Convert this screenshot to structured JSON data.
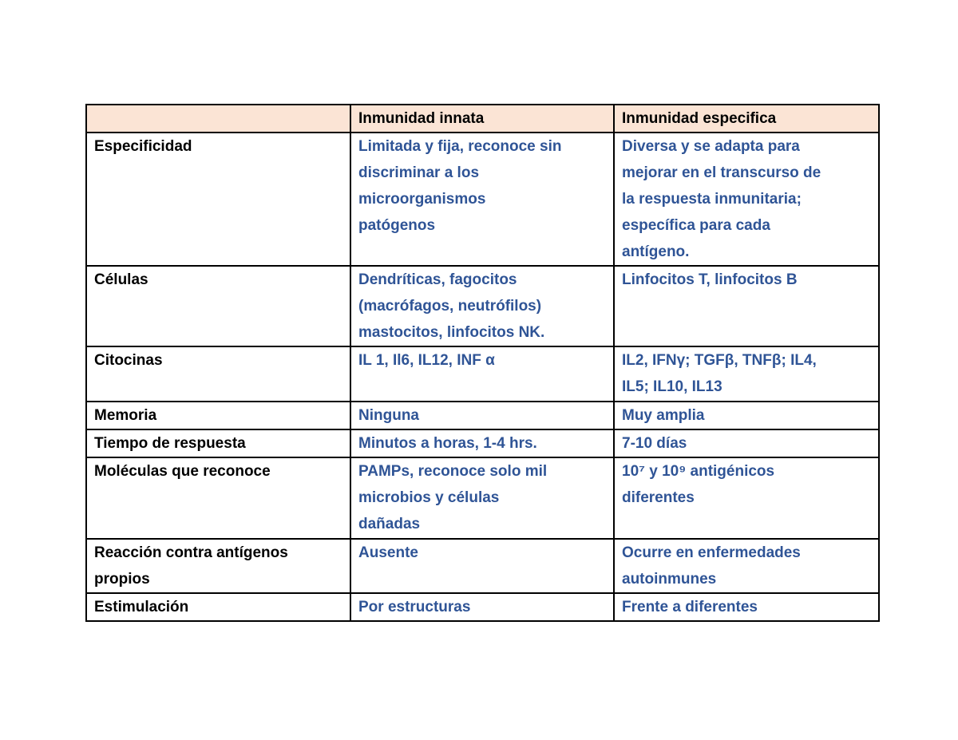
{
  "table": {
    "header": [
      "Inmunidad innata",
      "Inmunidad especifica"
    ],
    "rows": [
      [
        [
          "Especificidad"
        ],
        [
          "Limitada y fija, reconoce sin",
          "discriminar a los",
          "microorganismos",
          "patógenos"
        ],
        [
          "Diversa y se adapta para",
          "mejorar en el transcurso de",
          "la respuesta inmunitaria;",
          "específica para cada",
          "antígeno."
        ]
      ],
      [
        [
          "Células"
        ],
        [
          "Dendríticas, fagocitos",
          "(macrófagos, neutrófilos)",
          "mastocitos, linfocitos NK."
        ],
        [
          "Linfocitos T, linfocitos B"
        ]
      ],
      [
        [
          "Citocinas"
        ],
        [
          "IL 1, Il6, IL12, INF α"
        ],
        [
          "IL2, IFNγ; TGFβ, TNFβ; IL4,",
          "IL5; IL10, IL13"
        ]
      ],
      [
        [
          "Memoria"
        ],
        [
          "Ninguna"
        ],
        [
          "Muy amplia"
        ]
      ],
      [
        [
          "Tiempo de respuesta"
        ],
        [
          "Minutos a horas, 1-4 hrs."
        ],
        [
          "7-10 días"
        ]
      ],
      [
        [
          "Moléculas que reconoce"
        ],
        [
          "PAMPs, reconoce solo mil",
          "microbios y células",
          "dañadas"
        ],
        [
          "10⁷ y 10⁹ antigénicos",
          "diferentes"
        ]
      ],
      [
        [
          "Reacción contra antígenos",
          "propios"
        ],
        [
          "Ausente"
        ],
        [
          "Ocurre en enfermedades",
          "autoinmunes"
        ]
      ],
      [
        [
          "Estimulación"
        ],
        [
          "Por estructuras"
        ],
        [
          "Frente a diferentes"
        ]
      ]
    ]
  }
}
